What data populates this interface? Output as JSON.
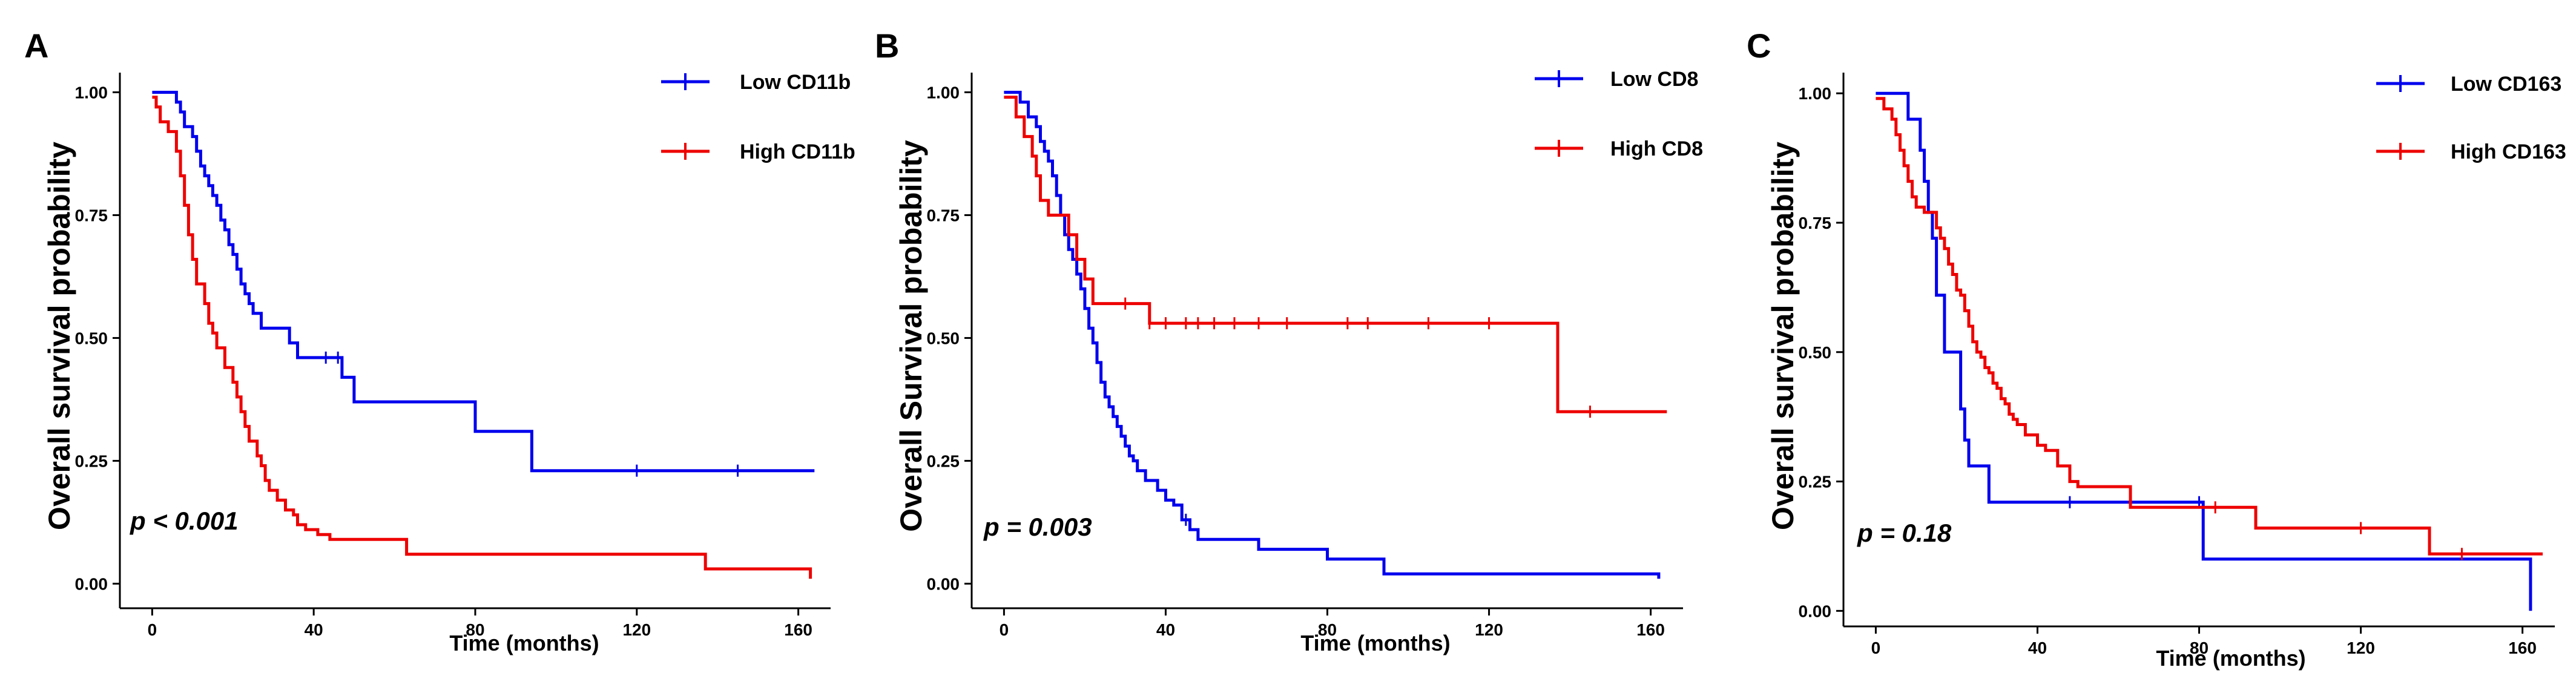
{
  "chart_data": [
    {
      "type": "line",
      "chart_kind": "kaplan-meier",
      "panel_label": "A",
      "xlabel": "Time (months)",
      "ylabel": "Overall survival probability",
      "xlim": [
        -8,
        168
      ],
      "ylim": [
        -0.05,
        1.04
      ],
      "x_ticks": [
        0,
        40,
        80,
        120,
        160
      ],
      "y_ticks": [
        0.0,
        0.25,
        0.5,
        0.75,
        1.0
      ],
      "y_tick_labels": [
        "0.00",
        "0.25",
        "0.50",
        "0.75",
        "1.00"
      ],
      "annotation": "p < 0.001",
      "legend_position": "top-right",
      "series": [
        {
          "name": "Low CD11b",
          "color": "#0000ee",
          "x": [
            0,
            6,
            7,
            8,
            10,
            11,
            12,
            13,
            14,
            15,
            16,
            17,
            18,
            19,
            20,
            21,
            22,
            23,
            24,
            25,
            27,
            30,
            34,
            36,
            40,
            47,
            50,
            80,
            94,
            164
          ],
          "y": [
            1.0,
            0.98,
            0.96,
            0.93,
            0.91,
            0.88,
            0.85,
            0.83,
            0.81,
            0.79,
            0.77,
            0.74,
            0.72,
            0.69,
            0.67,
            0.64,
            0.61,
            0.59,
            0.57,
            0.55,
            0.52,
            0.52,
            0.49,
            0.46,
            0.46,
            0.42,
            0.37,
            0.31,
            0.23,
            0.23
          ],
          "censor_x": [
            43,
            46,
            120,
            145
          ]
        },
        {
          "name": "High CD11b",
          "color": "#ee0000",
          "x": [
            0,
            1,
            2,
            4,
            6,
            7,
            8,
            9,
            10,
            11,
            13,
            14,
            15,
            16,
            18,
            20,
            21,
            22,
            23,
            24,
            26,
            27,
            28,
            29,
            31,
            33,
            35,
            36,
            38,
            41,
            44,
            47,
            63,
            137,
            163
          ],
          "y": [
            0.99,
            0.97,
            0.94,
            0.92,
            0.88,
            0.83,
            0.77,
            0.71,
            0.66,
            0.61,
            0.57,
            0.53,
            0.51,
            0.48,
            0.44,
            0.41,
            0.38,
            0.35,
            0.32,
            0.29,
            0.26,
            0.24,
            0.21,
            0.19,
            0.17,
            0.15,
            0.14,
            0.12,
            0.11,
            0.1,
            0.09,
            0.09,
            0.06,
            0.03,
            0.01
          ],
          "censor_x": []
        }
      ]
    },
    {
      "type": "line",
      "chart_kind": "kaplan-meier",
      "panel_label": "B",
      "xlabel": "Time (months)",
      "ylabel": "Overall Survival probability",
      "xlim": [
        -8,
        168
      ],
      "ylim": [
        -0.05,
        1.04
      ],
      "x_ticks": [
        0,
        40,
        80,
        120,
        160
      ],
      "y_ticks": [
        0.0,
        0.25,
        0.5,
        0.75,
        1.0
      ],
      "y_tick_labels": [
        "0.00",
        "0.25",
        "0.50",
        "0.75",
        "1.00"
      ],
      "annotation": "p = 0.003",
      "legend_position": "top-right",
      "series": [
        {
          "name": "Low CD8",
          "color": "#0000ee",
          "x": [
            0,
            4,
            6,
            8,
            9,
            10,
            11,
            12,
            13,
            14,
            15,
            16,
            17,
            18,
            19,
            20,
            21,
            22,
            23,
            24,
            25,
            26,
            27,
            28,
            29,
            30,
            31,
            32,
            33,
            35,
            36,
            38,
            40,
            42,
            44,
            46,
            48,
            52,
            63,
            80,
            94,
            162
          ],
          "y": [
            1.0,
            0.98,
            0.95,
            0.93,
            0.9,
            0.88,
            0.86,
            0.83,
            0.79,
            0.75,
            0.71,
            0.68,
            0.66,
            0.63,
            0.6,
            0.56,
            0.52,
            0.49,
            0.45,
            0.41,
            0.38,
            0.36,
            0.34,
            0.32,
            0.3,
            0.28,
            0.26,
            0.25,
            0.23,
            0.21,
            0.21,
            0.19,
            0.17,
            0.16,
            0.13,
            0.11,
            0.09,
            0.09,
            0.07,
            0.05,
            0.02,
            0.01
          ],
          "censor_x": [
            45
          ]
        },
        {
          "name": "High CD8",
          "color": "#ee0000",
          "x": [
            0,
            3,
            5,
            7,
            8,
            9,
            11,
            14,
            16,
            18,
            20,
            22,
            24,
            36,
            137,
            164
          ],
          "y": [
            0.99,
            0.95,
            0.91,
            0.87,
            0.83,
            0.78,
            0.75,
            0.75,
            0.71,
            0.66,
            0.62,
            0.57,
            0.57,
            0.53,
            0.35,
            0.35
          ],
          "censor_x": [
            30,
            36,
            40,
            45,
            48,
            52,
            57,
            63,
            70,
            85,
            90,
            105,
            120,
            145
          ]
        }
      ]
    },
    {
      "type": "line",
      "chart_kind": "kaplan-meier",
      "panel_label": "C",
      "xlabel": "Time (months)",
      "ylabel": "Overall survival probability",
      "xlim": [
        -8,
        168
      ],
      "ylim": [
        -0.03,
        1.04
      ],
      "x_ticks": [
        0,
        40,
        80,
        120,
        160
      ],
      "y_ticks": [
        0.0,
        0.25,
        0.5,
        0.75,
        1.0
      ],
      "y_tick_labels": [
        "0.00",
        "0.25",
        "0.50",
        "0.75",
        "1.00"
      ],
      "annotation": "p = 0.18",
      "legend_position": "top-right",
      "series": [
        {
          "name": "Low CD163",
          "color": "#0000ee",
          "x": [
            0,
            8,
            11,
            12,
            13,
            14,
            15,
            17,
            21,
            22,
            23,
            28,
            81,
            162
          ],
          "y": [
            1.0,
            0.95,
            0.89,
            0.83,
            0.77,
            0.72,
            0.61,
            0.5,
            0.39,
            0.33,
            0.28,
            0.21,
            0.1,
            0.0
          ],
          "censor_x": [
            48,
            80
          ]
        },
        {
          "name": "High CD163",
          "color": "#ee0000",
          "x": [
            0,
            2,
            4,
            5,
            6,
            7,
            8,
            9,
            10,
            12,
            15,
            16,
            17,
            18,
            19,
            20,
            21,
            22,
            23,
            24,
            25,
            26,
            27,
            28,
            29,
            30,
            31,
            32,
            33,
            34,
            35,
            37,
            40,
            42,
            45,
            48,
            50,
            63,
            80,
            94,
            137,
            165
          ],
          "y": [
            0.99,
            0.97,
            0.95,
            0.92,
            0.89,
            0.86,
            0.83,
            0.8,
            0.78,
            0.77,
            0.74,
            0.72,
            0.7,
            0.67,
            0.65,
            0.62,
            0.61,
            0.58,
            0.55,
            0.52,
            0.5,
            0.49,
            0.47,
            0.46,
            0.44,
            0.43,
            0.41,
            0.4,
            0.38,
            0.37,
            0.36,
            0.34,
            0.32,
            0.31,
            0.28,
            0.25,
            0.24,
            0.2,
            0.2,
            0.16,
            0.11,
            0.11
          ],
          "censor_x": [
            84,
            120,
            145
          ]
        }
      ]
    }
  ]
}
